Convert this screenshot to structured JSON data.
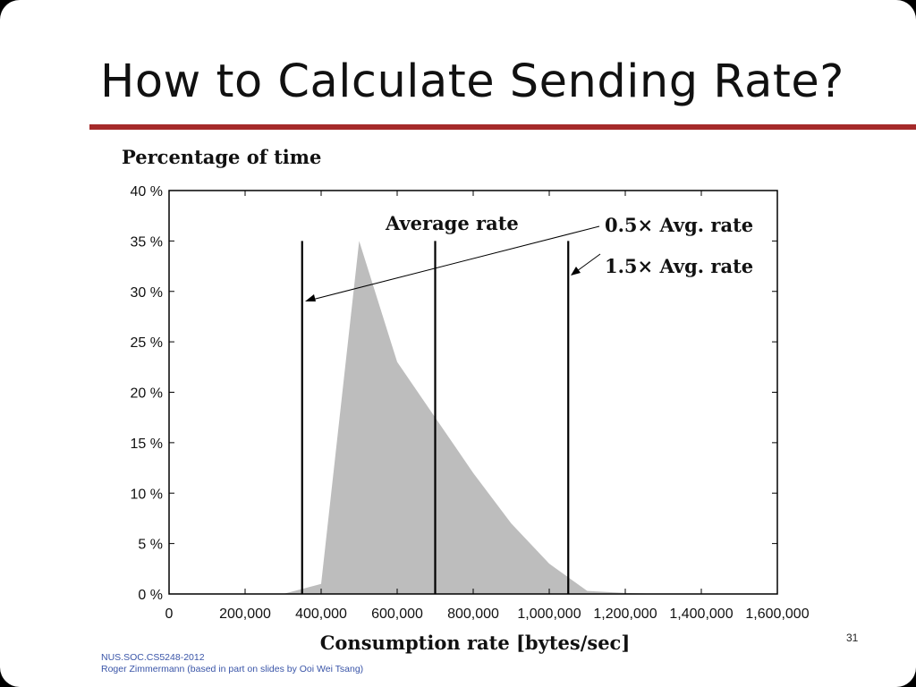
{
  "slide": {
    "title": "How to Calculate Sending Rate?",
    "accent_color": "#a52a2a",
    "footer_course": "NUS.SOC.CS5248-2012",
    "footer_author": "Roger Zimmermann (based in part on slides by Ooi Wei Tsang)",
    "page_number": "31"
  },
  "chart_data": {
    "type": "area",
    "ylabel": "Percentage of time",
    "xlabel": "Consumption rate [bytes/sec]",
    "xlim": [
      0,
      1600000
    ],
    "ylim": [
      0,
      40
    ],
    "x_ticks": [
      0,
      200000,
      400000,
      600000,
      800000,
      1000000,
      1200000,
      1400000,
      1600000
    ],
    "x_tick_labels": [
      "0",
      "200,000",
      "400,000",
      "600,000",
      "800,000",
      "1,000,000",
      "1,200,000",
      "1,400,000",
      "1,600,000"
    ],
    "y_ticks": [
      0,
      5,
      10,
      15,
      20,
      25,
      30,
      35,
      40
    ],
    "y_tick_labels": [
      "0 %",
      "5 %",
      "10 %",
      "15 %",
      "20 %",
      "25 %",
      "30 %",
      "35 %",
      "40 %"
    ],
    "fill_color": "#bdbdbd",
    "series": [
      {
        "x": [
          300000,
          400000,
          500000,
          600000,
          700000,
          800000,
          900000,
          1000000,
          1100000,
          1200000,
          1300000
        ],
        "y": [
          0,
          1,
          35,
          23,
          17.5,
          12,
          7,
          3,
          0.3,
          0.1,
          0
        ]
      }
    ],
    "reference_lines": [
      {
        "x": 350000,
        "label": "0.5× Avg. rate"
      },
      {
        "x": 700000,
        "label": "Average rate"
      },
      {
        "x": 1050000,
        "label": "1.5× Avg. rate"
      }
    ]
  }
}
